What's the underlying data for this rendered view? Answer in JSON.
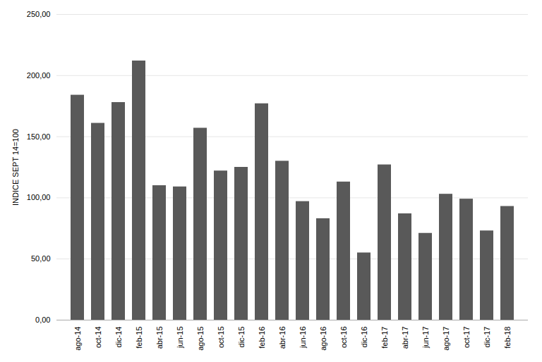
{
  "chart_data": {
    "type": "bar",
    "categories": [
      "ago-14",
      "oct-14",
      "dic-14",
      "feb-15",
      "abr-15",
      "jun-15",
      "ago-15",
      "oct-15",
      "dic-15",
      "feb-16",
      "abr-16",
      "jun-16",
      "ago-16",
      "oct-16",
      "dic-16",
      "feb-17",
      "abr-17",
      "jun-17",
      "ago-17",
      "oct-17",
      "dic-17",
      "feb-18"
    ],
    "values": [
      184,
      161,
      178,
      212,
      110,
      109,
      157,
      122,
      125,
      177,
      130,
      97,
      83,
      113,
      55,
      127,
      87,
      71,
      103,
      99,
      73,
      93
    ],
    "color": "#595959",
    "ylabel": "INDICE SEPT 14=100",
    "ylim": [
      0,
      250
    ],
    "yticks": [
      {
        "value": 0,
        "label": "0,00"
      },
      {
        "value": 50,
        "label": "50,00"
      },
      {
        "value": 100,
        "label": "100,00"
      },
      {
        "value": 150,
        "label": "150,00"
      },
      {
        "value": 200,
        "label": "200,00"
      },
      {
        "value": 250,
        "label": "250,00"
      }
    ],
    "grid": true
  }
}
